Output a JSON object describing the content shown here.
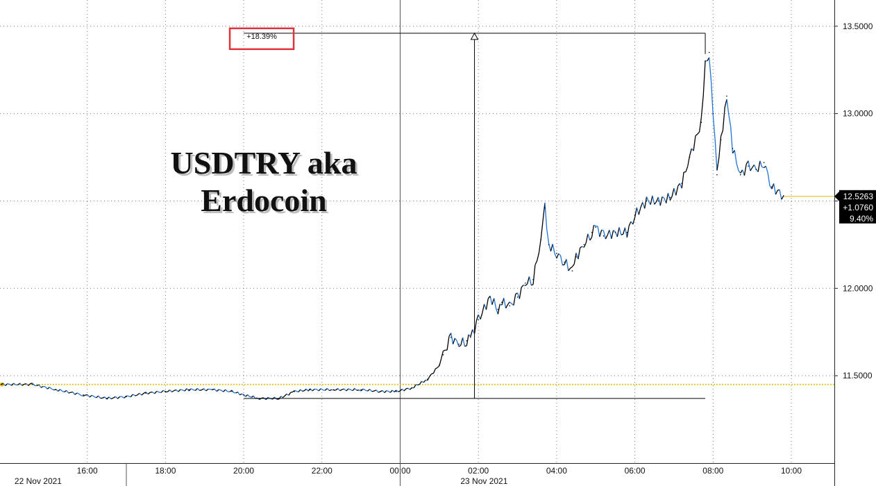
{
  "colors": {
    "grid": "#777777",
    "axis": "#222222",
    "up_candle": "#000000",
    "down_candle": "#1e73d8",
    "ref_line": "#e6b800",
    "annotation_box": "#e0333a",
    "badge_bg": "#000000"
  },
  "chart_data": {
    "type": "line",
    "title": "USDTRY aka\nErdocoin",
    "title_lines": [
      "USDTRY aka",
      "Erdocoin"
    ],
    "ylim": [
      11.0,
      13.65
    ],
    "y_ticks": [
      11.5,
      12.0,
      12.5,
      13.0,
      13.5
    ],
    "y_tick_labels": [
      "11.5000",
      "12.0000",
      "12.5000",
      "13.0000",
      "13.5000"
    ],
    "xlim": [
      13.77,
      35.1
    ],
    "x_ticks": [
      16,
      18,
      20,
      22,
      24,
      26,
      28,
      30,
      32,
      34
    ],
    "x_tick_labels": [
      "16:00",
      "18:00",
      "20:00",
      "22:00",
      "00:00",
      "02:00",
      "04:00",
      "06:00",
      "08:00",
      "10:00"
    ],
    "date_labels": [
      {
        "x": 14.0,
        "text": "22 Nov 2021"
      },
      {
        "x": 25.4,
        "text": "23 Nov 2021"
      }
    ],
    "day_separator_x": 24.0,
    "grid": true,
    "series": [
      {
        "x": [
          13.8,
          14.6,
          15.2,
          15.9,
          16.5,
          17.0,
          17.5,
          18.0,
          18.6,
          19.2,
          19.7,
          20.0,
          20.4,
          20.9,
          21.3,
          21.7,
          22.3,
          23.0,
          23.5,
          23.9,
          24.3,
          24.7,
          25.0,
          25.1,
          25.3,
          25.5,
          25.7,
          25.8,
          26.0,
          26.3,
          26.5,
          26.6,
          26.8,
          27.0,
          27.2,
          27.4,
          27.6,
          27.7,
          27.8,
          28.0,
          28.2,
          28.4,
          28.5,
          28.7,
          28.9,
          29.0,
          29.2,
          29.5,
          29.8,
          30.0,
          30.3,
          30.6,
          30.9,
          31.2,
          31.4,
          31.7,
          31.8,
          31.9,
          32.0,
          32.1,
          32.2,
          32.35,
          32.5,
          32.7,
          32.9,
          33.1,
          33.3,
          33.5,
          33.8
        ],
        "values": [
          11.45,
          11.45,
          11.42,
          11.39,
          11.37,
          11.38,
          11.4,
          11.41,
          11.42,
          11.42,
          11.41,
          11.39,
          11.37,
          11.37,
          11.41,
          11.42,
          11.42,
          11.42,
          11.41,
          11.41,
          11.43,
          11.48,
          11.56,
          11.62,
          11.72,
          11.68,
          11.7,
          11.72,
          11.82,
          11.95,
          11.88,
          11.92,
          11.9,
          11.95,
          12.03,
          12.05,
          12.28,
          12.46,
          12.25,
          12.2,
          12.15,
          12.1,
          12.18,
          12.25,
          12.32,
          12.35,
          12.3,
          12.32,
          12.32,
          12.42,
          12.5,
          12.5,
          12.52,
          12.6,
          12.75,
          12.95,
          13.3,
          13.35,
          13.0,
          12.65,
          12.85,
          13.1,
          12.8,
          12.65,
          12.7,
          12.68,
          12.72,
          12.58,
          12.53
        ]
      }
    ],
    "reference_line": {
      "y": 11.45
    },
    "last_value_badge": [
      "12.5263",
      "+1.0760",
      "9.40%"
    ],
    "last_value_y": 12.5263,
    "range_measure": {
      "x_left": 20.0,
      "x_right": 31.8,
      "y_low": 11.37,
      "y_high": 13.46,
      "x_arrow": 25.9,
      "label": "+18.39%"
    }
  }
}
